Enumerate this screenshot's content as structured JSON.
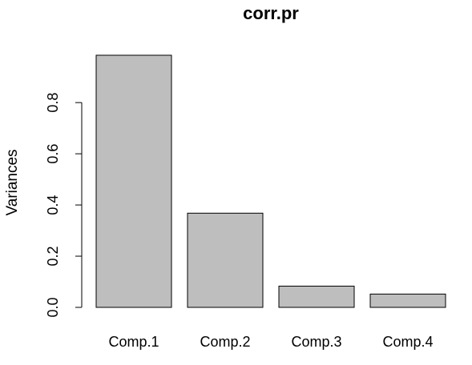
{
  "chart_data": {
    "type": "bar",
    "title": "corr.pr",
    "xlabel": "",
    "ylabel": "Variances",
    "categories": [
      "Comp.1",
      "Comp.2",
      "Comp.3",
      "Comp.4"
    ],
    "values": [
      0.985,
      0.368,
      0.083,
      0.052
    ],
    "ylim": [
      0,
      0.985
    ],
    "yticks": [
      0.0,
      0.2,
      0.4,
      0.6,
      0.8
    ],
    "ytick_labels": [
      "0.0",
      "0.2",
      "0.4",
      "0.6",
      "0.8"
    ],
    "grid": false,
    "legend": "none",
    "bar_color": "#bebebe",
    "edge_color": "#000000"
  }
}
